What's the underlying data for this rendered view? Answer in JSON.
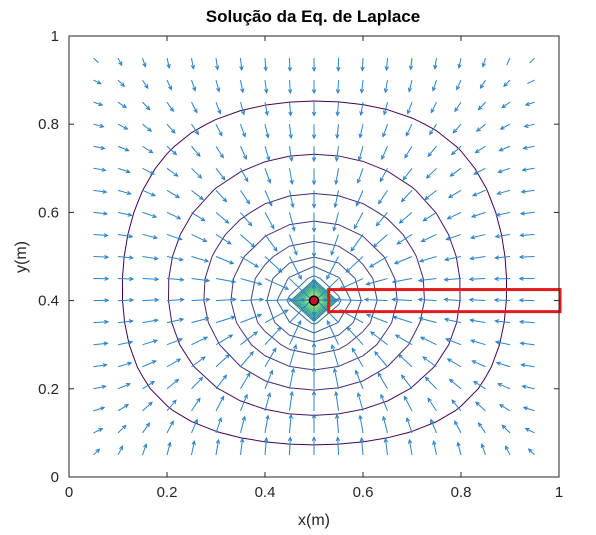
{
  "chart_data": {
    "type": "contour",
    "title": "Solução da Eq. de Laplace",
    "xlabel": "x(m)",
    "ylabel": "y(m)",
    "xlim": [
      0,
      1
    ],
    "ylim": [
      0,
      1
    ],
    "x_ticks": [
      "0",
      "0.2",
      "0.4",
      "0.6",
      "0.8",
      "1"
    ],
    "y_ticks": [
      "0",
      "0.2",
      "0.4",
      "0.6",
      "0.8",
      "1"
    ],
    "grid": false,
    "box": true,
    "colormap": "viridis",
    "point_source": {
      "x": 0.5,
      "y": 0.4
    },
    "contour_levels": 21,
    "quiver_spacing": 0.05,
    "annotations": [
      {
        "type": "highlight-box",
        "x_range": [
          0.53,
          1.0
        ],
        "y_range": [
          0.375,
          0.425
        ],
        "color": "#e31a1c"
      }
    ],
    "colors": {
      "marker_fill": "#c8102e",
      "marker_edge": "#000000",
      "arrow": "#2a82c9",
      "axes": "#262626"
    }
  }
}
